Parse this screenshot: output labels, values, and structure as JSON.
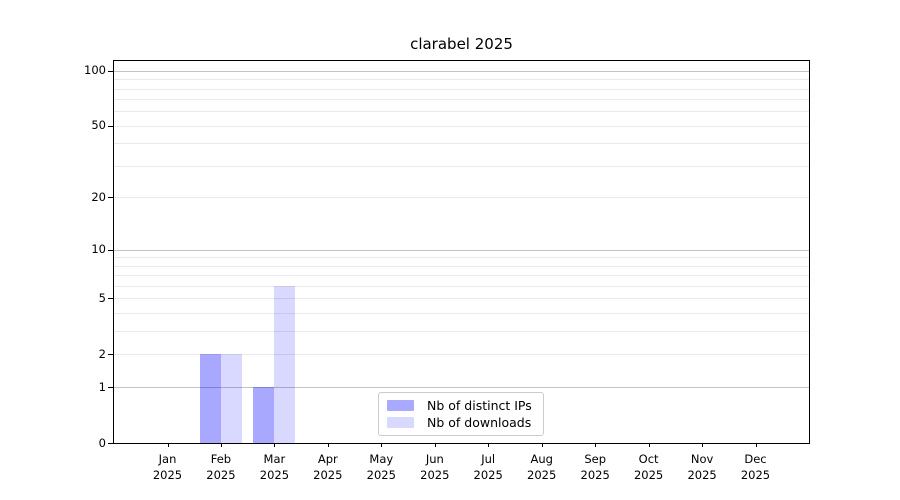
{
  "title": "clarabel 2025",
  "colors": {
    "bar_distinct_ips": "rgba(0,0,255,0.34)",
    "bar_downloads": "rgba(0,0,255,0.15)",
    "swatch_distinct_ips": "#a9a9ff",
    "swatch_downloads": "#d9d9ff",
    "grid_major": "#c3c3c3",
    "grid_minor": "#eaeaea",
    "axis": "#000000",
    "legend_border": "#cccccc"
  },
  "legend": {
    "items": [
      {
        "label": "Nb of distinct IPs",
        "color_key": "distinct_ips"
      },
      {
        "label": "Nb of downloads",
        "color_key": "downloads"
      }
    ]
  },
  "chart_data": {
    "type": "bar",
    "title": "clarabel 2025",
    "x_months": [
      "Jan",
      "Feb",
      "Mar",
      "Apr",
      "May",
      "Jun",
      "Jul",
      "Aug",
      "Sep",
      "Oct",
      "Nov",
      "Dec"
    ],
    "x_year": "2025",
    "categories": [
      "Jan 2025",
      "Feb 2025",
      "Mar 2025",
      "Apr 2025",
      "May 2025",
      "Jun 2025",
      "Jul 2025",
      "Aug 2025",
      "Sep 2025",
      "Oct 2025",
      "Nov 2025",
      "Dec 2025"
    ],
    "series": [
      {
        "name": "Nb of distinct IPs",
        "values": [
          0,
          2,
          1,
          0,
          0,
          0,
          0,
          0,
          0,
          0,
          0,
          0
        ]
      },
      {
        "name": "Nb of downloads",
        "values": [
          0,
          2,
          6,
          0,
          0,
          0,
          0,
          0,
          0,
          0,
          0,
          0
        ]
      }
    ],
    "y_scale": "log1p",
    "y_ticks": [
      0,
      1,
      2,
      5,
      10,
      20,
      50,
      100
    ],
    "y_major_gridlines": [
      1,
      10,
      100
    ],
    "y_minor_gridlines": [
      2,
      3,
      4,
      5,
      6,
      7,
      8,
      9,
      20,
      30,
      40,
      50,
      60,
      70,
      80,
      90
    ],
    "ylim": [
      0,
      113
    ],
    "grid": true,
    "legend_position": "lower center",
    "xlabel": "",
    "ylabel": ""
  }
}
